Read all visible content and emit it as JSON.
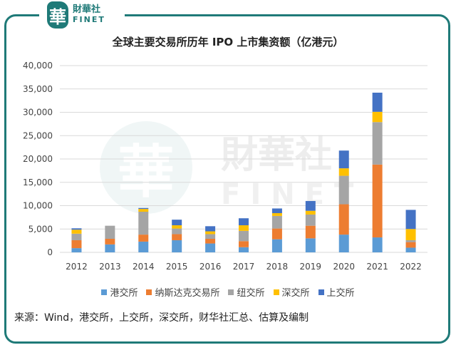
{
  "logo": {
    "mark": "華",
    "cn": "財華社",
    "en": "FINET"
  },
  "watermark": {
    "mark": "華",
    "cn": "財華社",
    "en": "FINET"
  },
  "source": "来源：Wind，港交所，上交所，深交所，财华社汇总、估算及编制",
  "chart_data": {
    "type": "bar",
    "stacked": true,
    "title": "全球主要交易所历年 IPO 上市集资额（亿港元）",
    "xlabel": "",
    "ylabel": "",
    "ylim": [
      0,
      40000
    ],
    "yticks": [
      "0",
      "5,000",
      "10,000",
      "15,000",
      "20,000",
      "25,000",
      "30,000",
      "35,000",
      "40,000"
    ],
    "ytick_values": [
      0,
      5000,
      10000,
      15000,
      20000,
      25000,
      30000,
      35000,
      40000
    ],
    "grid": true,
    "legend_position": "bottom",
    "categories": [
      "2012",
      "2013",
      "2014",
      "2015",
      "2016",
      "2017",
      "2018",
      "2019",
      "2020",
      "2021",
      "2022"
    ],
    "series": [
      {
        "name": "港交所",
        "color": "#5b9bd5",
        "values": [
          900,
          1700,
          2300,
          2600,
          1900,
          1100,
          2800,
          3000,
          3800,
          3200,
          1000
        ]
      },
      {
        "name": "纳斯达克交易所",
        "color": "#ed7d31",
        "values": [
          1700,
          1200,
          1500,
          1300,
          1000,
          1300,
          2300,
          2700,
          6500,
          15600,
          1200
        ]
      },
      {
        "name": "纽交所",
        "color": "#a5a5a5",
        "values": [
          1400,
          2800,
          4900,
          1200,
          1000,
          2200,
          2700,
          2400,
          6100,
          9100,
          400
        ]
      },
      {
        "name": "深交所",
        "color": "#ffc000",
        "values": [
          850,
          0,
          600,
          700,
          600,
          1200,
          600,
          800,
          1600,
          2200,
          2400
        ]
      },
      {
        "name": "上交所",
        "color": "#4472c4",
        "values": [
          300,
          0,
          200,
          1200,
          1100,
          1500,
          1000,
          2100,
          3800,
          4100,
          4100
        ]
      }
    ]
  }
}
